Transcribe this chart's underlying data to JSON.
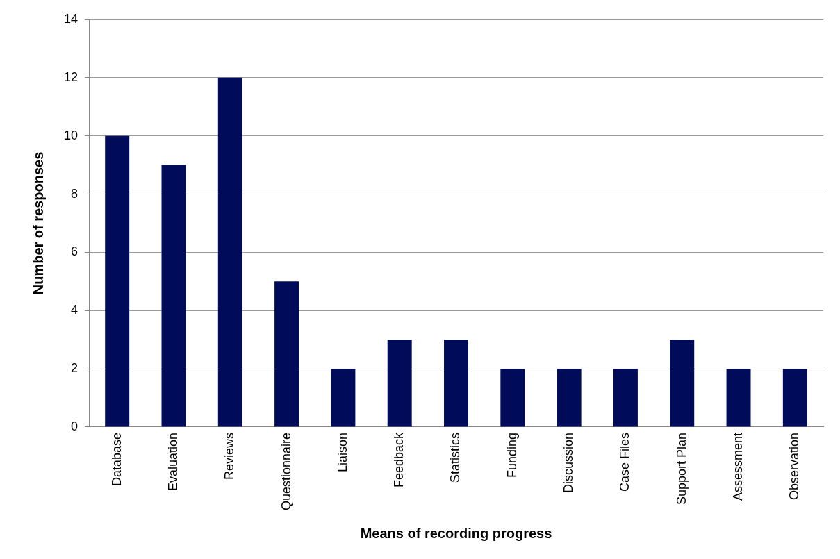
{
  "chart_data": {
    "type": "bar",
    "xlabel": "Means of recording progress",
    "ylabel": "Number of responses",
    "categories": [
      "Database",
      "Evaluation",
      "Reviews",
      "Questionnaire",
      "Liaison",
      "Feedback",
      "Statistics",
      "Funding",
      "Discussion",
      "Case Files",
      "Support Plan",
      "Assessment",
      "Observation"
    ],
    "values": [
      10,
      9,
      12,
      5,
      2,
      3,
      3,
      2,
      2,
      2,
      3,
      2,
      2
    ],
    "color": "#000c59",
    "ylim": [
      0,
      14
    ],
    "yticks": [
      0,
      2,
      4,
      6,
      8,
      10,
      12,
      14
    ],
    "grid": "y",
    "legend": false
  }
}
